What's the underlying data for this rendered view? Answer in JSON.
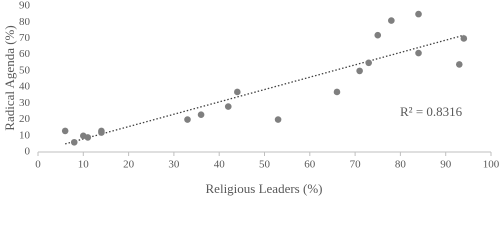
{
  "chart_data": {
    "type": "scatter",
    "x_label": "Religious Leaders (%)",
    "y_label": "Radical Agenda (%)",
    "annotation": "R² = 0.8316",
    "color": "#7f7f7f",
    "x": [
      6,
      8,
      10,
      11,
      14,
      14,
      33,
      36,
      42,
      44,
      53,
      66,
      71,
      73,
      75,
      78,
      84,
      84,
      93,
      94
    ],
    "values": [
      13,
      6,
      10,
      9,
      13,
      12,
      20,
      23,
      28,
      37,
      20,
      37,
      50,
      55,
      72,
      81,
      85,
      61,
      54,
      70
    ],
    "trendline": {
      "x": [
        6,
        94
      ],
      "y": [
        5,
        72
      ]
    },
    "xlim": [
      0,
      100
    ],
    "xticks": [
      0,
      10,
      20,
      30,
      40,
      50,
      60,
      70,
      80,
      90,
      100
    ],
    "ylim": [
      0,
      90
    ],
    "yticks": [
      0,
      10,
      20,
      30,
      40,
      50,
      60,
      70,
      80,
      90
    ]
  }
}
